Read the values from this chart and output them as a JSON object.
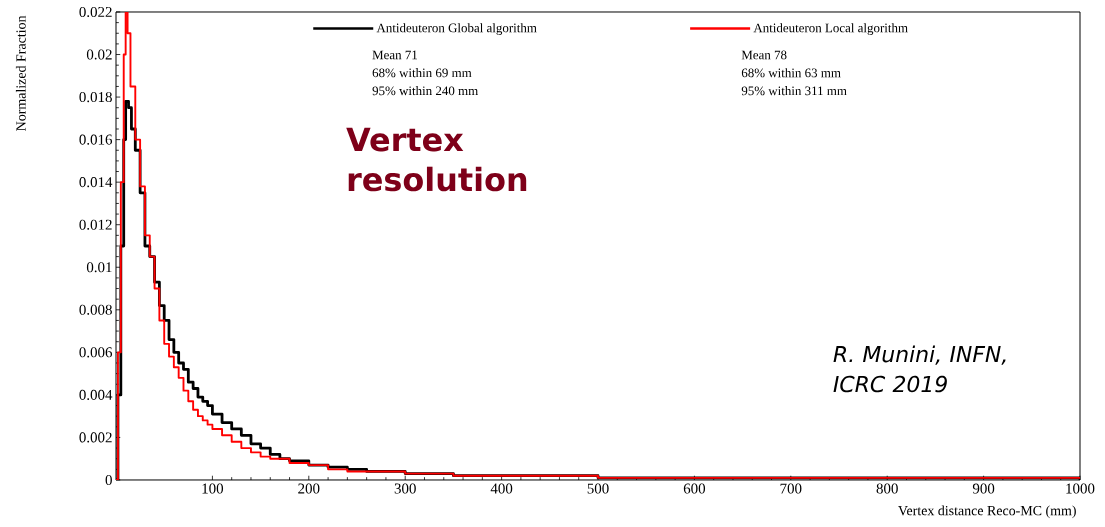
{
  "chart_data": {
    "type": "step",
    "xlabel": "Vertex distance Reco-MC (mm)",
    "ylabel": "Normalized Fraction",
    "xlim": [
      0,
      1000
    ],
    "ylim": [
      0,
      0.022
    ],
    "xticks": [
      100,
      200,
      300,
      400,
      500,
      600,
      700,
      800,
      900,
      1000
    ],
    "yticks": [
      0,
      0.002,
      0.004,
      0.006,
      0.008,
      0.01,
      0.012,
      0.014,
      0.016,
      0.018,
      0.02,
      0.022
    ],
    "grid": false,
    "legend": "top",
    "marker": "none",
    "line_style": "solid",
    "series": [
      {
        "name": "Antideuteron Global algorithm",
        "color": "#000000",
        "x": [
          0,
          2,
          5,
          8,
          10,
          13,
          16,
          20,
          25,
          30,
          35,
          40,
          45,
          50,
          55,
          60,
          65,
          70,
          75,
          80,
          85,
          90,
          95,
          100,
          110,
          120,
          130,
          140,
          150,
          160,
          170,
          180,
          200,
          220,
          240,
          260,
          300,
          350,
          400,
          500,
          600,
          700,
          800,
          900,
          1000
        ],
        "values": [
          0,
          0.004,
          0.011,
          0.016,
          0.0178,
          0.0175,
          0.0165,
          0.0155,
          0.0135,
          0.011,
          0.0105,
          0.0093,
          0.0082,
          0.0075,
          0.0066,
          0.006,
          0.0055,
          0.0052,
          0.0046,
          0.0043,
          0.0039,
          0.0037,
          0.0035,
          0.0031,
          0.0027,
          0.0024,
          0.0021,
          0.0017,
          0.0015,
          0.0012,
          0.001,
          0.0009,
          0.0007,
          0.0006,
          0.0005,
          0.0004,
          0.0003,
          0.0002,
          0.0002,
          0.0001,
          0.0001,
          0.0001,
          0.0001,
          0.0001,
          0
        ]
      },
      {
        "name": "Antideuteron Local algorithm",
        "color": "#ff0000",
        "x": [
          0,
          2,
          5,
          8,
          10,
          12,
          15,
          20,
          25,
          30,
          35,
          40,
          45,
          50,
          55,
          60,
          65,
          70,
          75,
          80,
          85,
          90,
          95,
          100,
          110,
          120,
          130,
          140,
          150,
          160,
          180,
          200,
          220,
          240,
          260,
          300,
          350,
          400,
          500,
          600,
          700,
          800,
          900,
          1000
        ],
        "values": [
          0,
          0.006,
          0.014,
          0.02,
          0.022,
          0.021,
          0.0185,
          0.016,
          0.0138,
          0.0115,
          0.0105,
          0.009,
          0.0075,
          0.0064,
          0.0058,
          0.0053,
          0.0048,
          0.0042,
          0.0037,
          0.0033,
          0.003,
          0.0028,
          0.0026,
          0.0024,
          0.0021,
          0.0018,
          0.0015,
          0.0013,
          0.0011,
          0.001,
          0.0008,
          0.0007,
          0.0005,
          0.0004,
          0.0004,
          0.0003,
          0.0002,
          0.0002,
          0.0001,
          0.0001,
          0.0001,
          0.0001,
          0.0001,
          0.0001
        ]
      }
    ],
    "annotations": [
      "Mean  71",
      "68% within 69 mm",
      "95% within 240 mm",
      "Mean  78",
      "68% within 63 mm",
      "95% within 311 mm",
      "Vertex resolution",
      "R. Munini, INFN, ICRC 2019"
    ]
  }
}
